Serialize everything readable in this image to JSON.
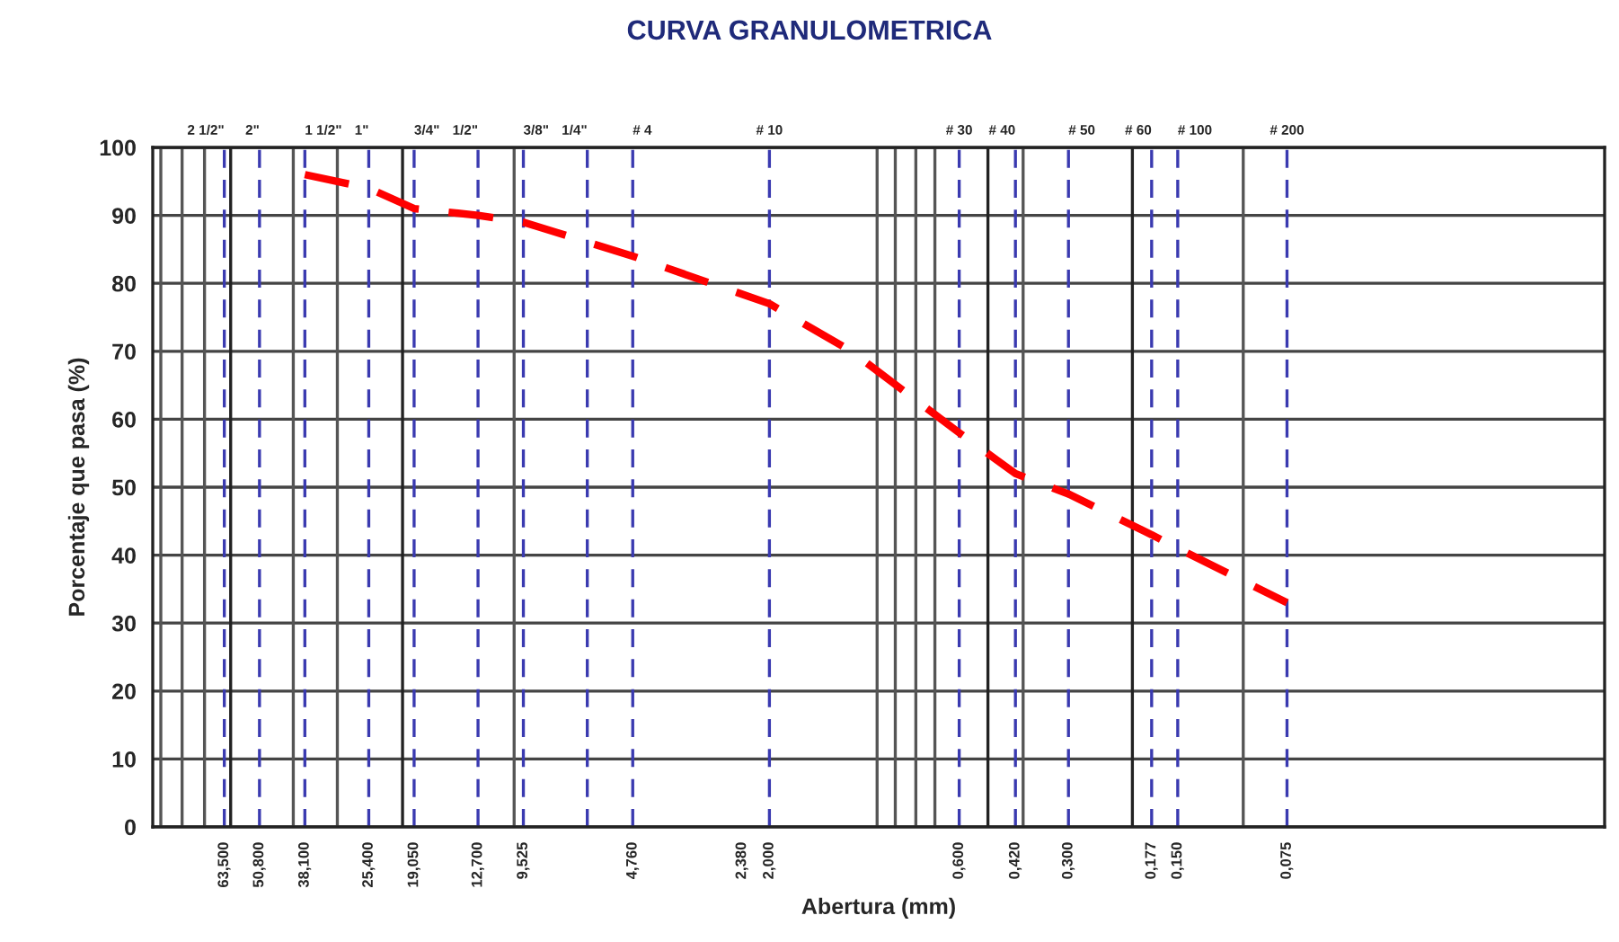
{
  "chart_data": {
    "type": "line",
    "title": "CURVA GRANULOMETRICA",
    "xlabel": "Abertura (mm)",
    "ylabel": "Porcentaje que pasa (%)",
    "log": "x",
    "grid": "y",
    "legend": false,
    "marker": "none",
    "line_style": "dashed",
    "x": [
      38.1,
      25.4,
      19.05,
      12.7,
      9.525,
      4.76,
      2.0,
      1.19,
      0.6,
      0.42,
      0.3,
      0.177,
      0.15,
      0.075
    ],
    "series": [
      {
        "color": "#ff0000",
        "values": [
          96,
          94,
          91,
          90,
          89,
          84,
          77,
          70,
          58,
          52,
          49,
          43,
          41,
          33
        ]
      }
    ],
    "xlim": [
      100,
      0.01
    ],
    "ylim": [
      0,
      100
    ],
    "yticks": [
      0,
      10,
      20,
      30,
      40,
      50,
      60,
      70,
      80,
      90,
      100
    ],
    "xticks": [
      {
        "value": 63.5,
        "label": "63,500"
      },
      {
        "value": 50.8,
        "label": "50,800"
      },
      {
        "value": 38.1,
        "label": "38,100"
      },
      {
        "value": 25.4,
        "label": "25,400"
      },
      {
        "value": 19.05,
        "label": "19,050"
      },
      {
        "value": 12.7,
        "label": "12,700"
      },
      {
        "value": 9.525,
        "label": "9,525"
      },
      {
        "value": 4.76,
        "label": "4,760"
      },
      {
        "value": 2.38,
        "label": "2,380"
      },
      {
        "value": 2.0,
        "label": "2,000"
      },
      {
        "value": 0.6,
        "label": "0,600"
      },
      {
        "value": 0.42,
        "label": "0,420"
      },
      {
        "value": 0.3,
        "label": "0,300"
      },
      {
        "value": 0.177,
        "label": "0,177"
      },
      {
        "value": 0.15,
        "label": "0,150"
      },
      {
        "value": 0.075,
        "label": "0,075"
      }
    ],
    "annotations": [
      {
        "text": "2 1/2\"",
        "x": 63.5,
        "y": 100
      },
      {
        "text": "2\"",
        "x": 50.8,
        "y": 100
      },
      {
        "text": "1 1/2\"",
        "x": 38.1,
        "y": 100
      },
      {
        "text": "1\"",
        "x": 25.4,
        "y": 100
      },
      {
        "text": "3/4\"",
        "x": 19.05,
        "y": 100
      },
      {
        "text": "1/2\"",
        "x": 12.7,
        "y": 100
      },
      {
        "text": "3/8\"",
        "x": 9.525,
        "y": 100
      },
      {
        "text": "1/4\"",
        "x": 6.35,
        "y": 100
      },
      {
        "text": "# 4",
        "x": 4.76,
        "y": 100
      },
      {
        "text": "# 10",
        "x": 2.0,
        "y": 100
      },
      {
        "text": "# 30",
        "x": 0.6,
        "y": 100
      },
      {
        "text": "# 40",
        "x": 0.42,
        "y": 100
      },
      {
        "text": "# 50",
        "x": 0.3,
        "y": 100
      },
      {
        "text": "# 60",
        "x": 0.177,
        "y": 100
      },
      {
        "text": "# 100",
        "x": 0.15,
        "y": 100
      },
      {
        "text": "# 200",
        "x": 0.075,
        "y": 100
      }
    ],
    "ref_lines": [
      {
        "axis": "x",
        "value": 63.5,
        "color": "#3a3ab0",
        "line_style": "dashed"
      },
      {
        "axis": "x",
        "value": 50.8,
        "color": "#3a3ab0",
        "line_style": "dashed"
      },
      {
        "axis": "x",
        "value": 38.1,
        "color": "#3a3ab0",
        "line_style": "dashed"
      },
      {
        "axis": "x",
        "value": 25.4,
        "color": "#3a3ab0",
        "line_style": "dashed"
      },
      {
        "axis": "x",
        "value": 19.05,
        "color": "#3a3ab0",
        "line_style": "dashed"
      },
      {
        "axis": "x",
        "value": 12.7,
        "color": "#3a3ab0",
        "line_style": "dashed"
      },
      {
        "axis": "x",
        "value": 9.525,
        "color": "#3a3ab0",
        "line_style": "dashed"
      },
      {
        "axis": "x",
        "value": 6.35,
        "color": "#3a3ab0",
        "line_style": "dashed"
      },
      {
        "axis": "x",
        "value": 4.76,
        "color": "#3a3ab0",
        "line_style": "dashed"
      },
      {
        "axis": "x",
        "value": 2.0,
        "color": "#3a3ab0",
        "line_style": "dashed"
      },
      {
        "axis": "x",
        "value": 0.6,
        "color": "#3a3ab0",
        "line_style": "dashed"
      },
      {
        "axis": "x",
        "value": 0.42,
        "color": "#3a3ab0",
        "line_style": "dashed"
      },
      {
        "axis": "x",
        "value": 0.3,
        "color": "#3a3ab0",
        "line_style": "dashed"
      },
      {
        "axis": "x",
        "value": 0.177,
        "color": "#3a3ab0",
        "line_style": "dashed"
      },
      {
        "axis": "x",
        "value": 0.15,
        "color": "#3a3ab0",
        "line_style": "dashed"
      },
      {
        "axis": "x",
        "value": 0.075,
        "color": "#3a3ab0",
        "line_style": "dashed"
      },
      {
        "axis": "x",
        "value": 95,
        "color": "#555555",
        "line_style": "solid"
      },
      {
        "axis": "x",
        "value": 83,
        "color": "#555555",
        "line_style": "solid"
      },
      {
        "axis": "x",
        "value": 72,
        "color": "#555555",
        "line_style": "solid"
      },
      {
        "axis": "x",
        "value": 61,
        "color": "#222222",
        "line_style": "solid"
      },
      {
        "axis": "x",
        "value": 41,
        "color": "#555555",
        "line_style": "solid"
      },
      {
        "axis": "x",
        "value": 31,
        "color": "#555555",
        "line_style": "solid"
      },
      {
        "axis": "x",
        "value": 20.5,
        "color": "#222222",
        "line_style": "solid"
      },
      {
        "axis": "x",
        "value": 10.1,
        "color": "#555555",
        "line_style": "solid"
      },
      {
        "axis": "x",
        "value": 1.01,
        "color": "#555555",
        "line_style": "solid"
      },
      {
        "axis": "x",
        "value": 0.9,
        "color": "#555555",
        "line_style": "solid"
      },
      {
        "axis": "x",
        "value": 0.79,
        "color": "#555555",
        "line_style": "solid"
      },
      {
        "axis": "x",
        "value": 0.7,
        "color": "#555555",
        "line_style": "solid"
      },
      {
        "axis": "x",
        "value": 0.5,
        "color": "#222222",
        "line_style": "solid"
      },
      {
        "axis": "x",
        "value": 0.4,
        "color": "#555555",
        "line_style": "solid"
      },
      {
        "axis": "x",
        "value": 0.2,
        "color": "#222222",
        "line_style": "solid"
      },
      {
        "axis": "x",
        "value": 0.099,
        "color": "#555555",
        "line_style": "solid"
      }
    ]
  }
}
